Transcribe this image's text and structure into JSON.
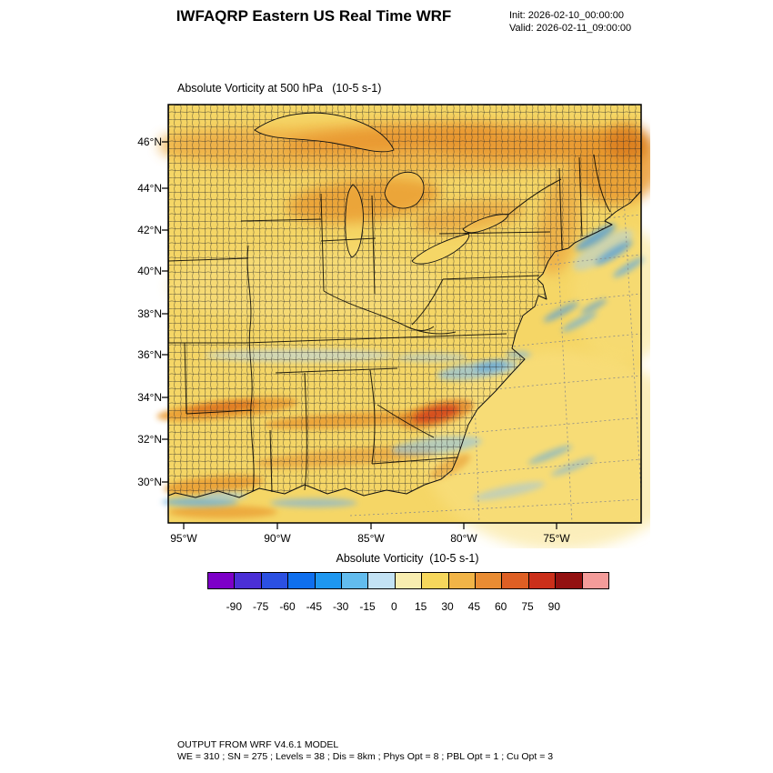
{
  "header": {
    "title": "IWFAQRP Eastern US Real Time WRF",
    "init_label": "Init: 2026-02-10_00:00:00",
    "valid_label": "Valid: 2026-02-11_09:00:00"
  },
  "plot": {
    "field_title": "Absolute Vorticity at 500 hPa   (10-5 s-1)",
    "lat_ticks": [
      "46°N",
      "44°N",
      "42°N",
      "40°N",
      "38°N",
      "36°N",
      "34°N",
      "32°N",
      "30°N"
    ],
    "lon_ticks": [
      "95°W",
      "90°W",
      "85°W",
      "80°W",
      "75°W"
    ]
  },
  "colorbar": {
    "title": "Absolute Vorticity  (10-5 s-1)",
    "tick_labels": [
      "-90",
      "-75",
      "-60",
      "-45",
      "-30",
      "-15",
      "0",
      "15",
      "30",
      "45",
      "60",
      "75",
      "90"
    ],
    "colors": [
      "#7d00c8",
      "#4b2fd6",
      "#2b50e2",
      "#0f6fee",
      "#1e97f0",
      "#62bcee",
      "#c3e2f4",
      "#f8edb0",
      "#f6d75c",
      "#f1b447",
      "#e98c33",
      "#de5f24",
      "#cb2f1a",
      "#931111",
      "#f49c9a"
    ]
  },
  "footer": {
    "line1": "OUTPUT FROM WRF V4.6.1 MODEL",
    "line2": "WE = 310 ; SN = 275 ; Levels = 38 ; Dis = 8km ; Phys Opt = 8 ; PBL Opt = 1 ; Cu Opt = 3"
  },
  "chart_data": {
    "type": "heatmap",
    "title": "Absolute Vorticity at 500 hPa (10-5 s-1)",
    "init": "2026-02-10_00:00:00",
    "valid": "2026-02-11_09:00:00",
    "units": "10-5 s-1",
    "x_axis": {
      "label": "longitude",
      "tick_labels": [
        "95°W",
        "90°W",
        "85°W",
        "80°W",
        "75°W"
      ],
      "range_deg_west": [
        96,
        70.5
      ]
    },
    "y_axis": {
      "label": "latitude",
      "tick_labels": [
        "46°N",
        "44°N",
        "42°N",
        "40°N",
        "38°N",
        "36°N",
        "34°N",
        "32°N",
        "30°N"
      ],
      "range_deg_north": [
        28.5,
        47.5
      ]
    },
    "colorbar": {
      "levels": [
        -105,
        -90,
        -75,
        -60,
        -45,
        -30,
        -15,
        0,
        15,
        30,
        45,
        60,
        75,
        90,
        105,
        120
      ],
      "colors": [
        "#7d00c8",
        "#4b2fd6",
        "#2b50e2",
        "#0f6fee",
        "#1e97f0",
        "#62bcee",
        "#c3e2f4",
        "#f8edb0",
        "#f6d75c",
        "#f1b447",
        "#e98c33",
        "#de5f24",
        "#cb2f1a",
        "#931111",
        "#f49c9a"
      ],
      "tick_labels": [
        "-90",
        "-75",
        "-60",
        "-45",
        "-30",
        "-15",
        "0",
        "15",
        "30",
        "45",
        "60",
        "75",
        "90"
      ]
    },
    "field_features": [
      {
        "region": "domain background",
        "value_range": [
          5,
          25
        ]
      },
      {
        "region": "band along northern edge 46-48N",
        "value_range": [
          30,
          60
        ]
      },
      {
        "region": "Great Lakes / Upper Midwest band",
        "value_range": [
          30,
          55
        ]
      },
      {
        "region": "Maine and Maritimes (northeast corner)",
        "value_range": [
          30,
          60
        ]
      },
      {
        "region": "diagonal bands across Deep South 31-34N",
        "value_range": [
          30,
          55
        ]
      },
      {
        "region": "vorticity maximum over the Carolinas",
        "value_range": [
          55,
          80
        ]
      },
      {
        "region": "streaks offshore of Northeast coast",
        "value_range": [
          -45,
          -15
        ]
      },
      {
        "region": "patches coastal Carolinas / Southeast offshore",
        "value_range": [
          -30,
          -10
        ]
      },
      {
        "region": "faint band near 35-36N Tennessee valley",
        "value_range": [
          -15,
          5
        ]
      },
      {
        "region": "streaks along Gulf coast 29-30N",
        "value_range": [
          -30,
          -10
        ]
      }
    ],
    "grid": "gray dashed lat/lon graticule visible over ocean",
    "overlays": [
      "US county boundaries",
      "state boundaries",
      "coastlines",
      "Great Lakes"
    ]
  }
}
